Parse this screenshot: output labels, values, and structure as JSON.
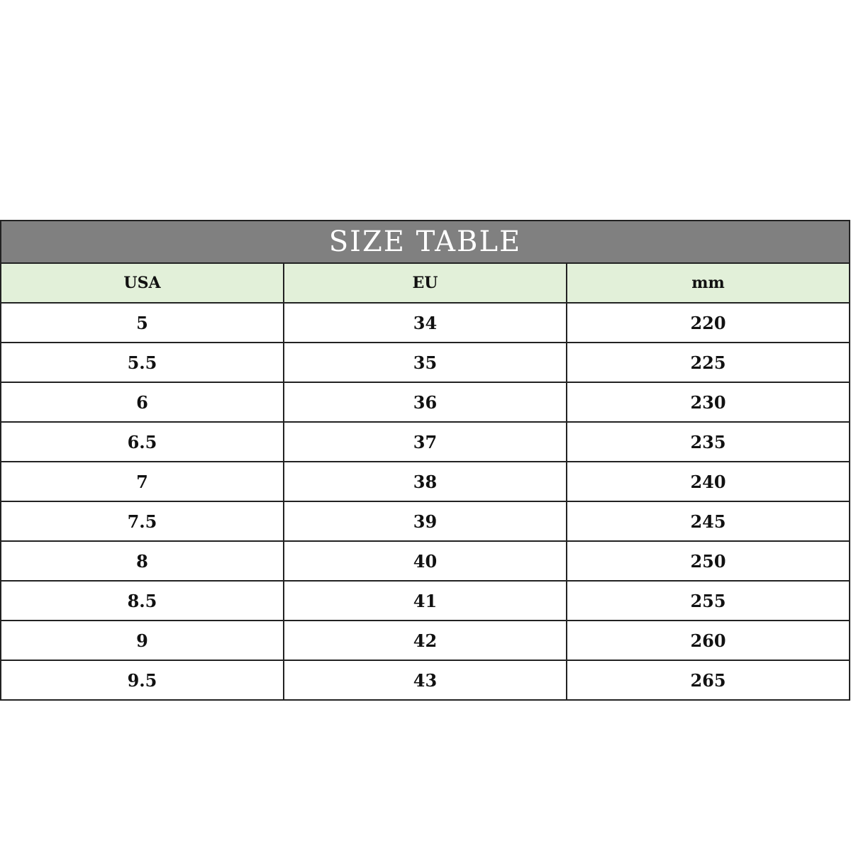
{
  "title": "SIZE TABLE",
  "colors": {
    "title_bg": "#808080",
    "header_bg": "#e2f0d9"
  },
  "columns": [
    "USA",
    "EU",
    "mm"
  ],
  "rows": [
    [
      "5",
      "34",
      "220"
    ],
    [
      "5.5",
      "35",
      "225"
    ],
    [
      "6",
      "36",
      "230"
    ],
    [
      "6.5",
      "37",
      "235"
    ],
    [
      "7",
      "38",
      "240"
    ],
    [
      "7.5",
      "39",
      "245"
    ],
    [
      "8",
      "40",
      "250"
    ],
    [
      "8.5",
      "41",
      "255"
    ],
    [
      "9",
      "42",
      "260"
    ],
    [
      "9.5",
      "43",
      "265"
    ]
  ]
}
